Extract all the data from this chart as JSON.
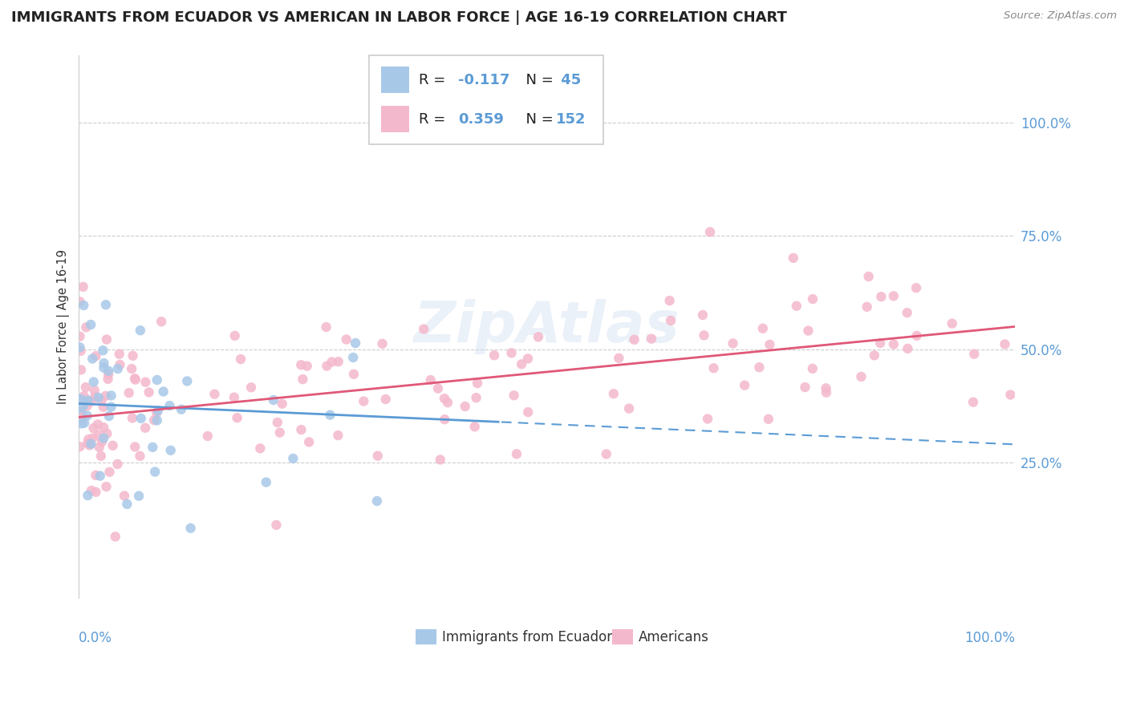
{
  "title": "IMMIGRANTS FROM ECUADOR VS AMERICAN IN LABOR FORCE | AGE 16-19 CORRELATION CHART",
  "source": "Source: ZipAtlas.com",
  "ylabel": "In Labor Force | Age 16-19",
  "background": "#ffffff",
  "watermark": "ZipAtlas",
  "blue_color": "#5b9bd5",
  "pink_color": "#e05878",
  "blue_dot_color": "#a8c8e8",
  "pink_dot_color": "#f4b8cc",
  "blue_r": "-0.117",
  "blue_n": "45",
  "pink_r": "0.359",
  "pink_n": "152",
  "blue_intercept": 0.38,
  "blue_slope": -0.09,
  "pink_intercept": 0.35,
  "pink_slope": 0.2,
  "xlim": [
    0,
    1.0
  ],
  "ylim": [
    -0.05,
    1.15
  ],
  "yticks_right": [
    0.25,
    0.5,
    0.75,
    1.0
  ],
  "ytick_labels_right": [
    "25.0%",
    "50.0%",
    "75.0%",
    "100.0%"
  ],
  "title_fontsize": 13,
  "axis_label_fontsize": 10.5,
  "dot_size": 80
}
